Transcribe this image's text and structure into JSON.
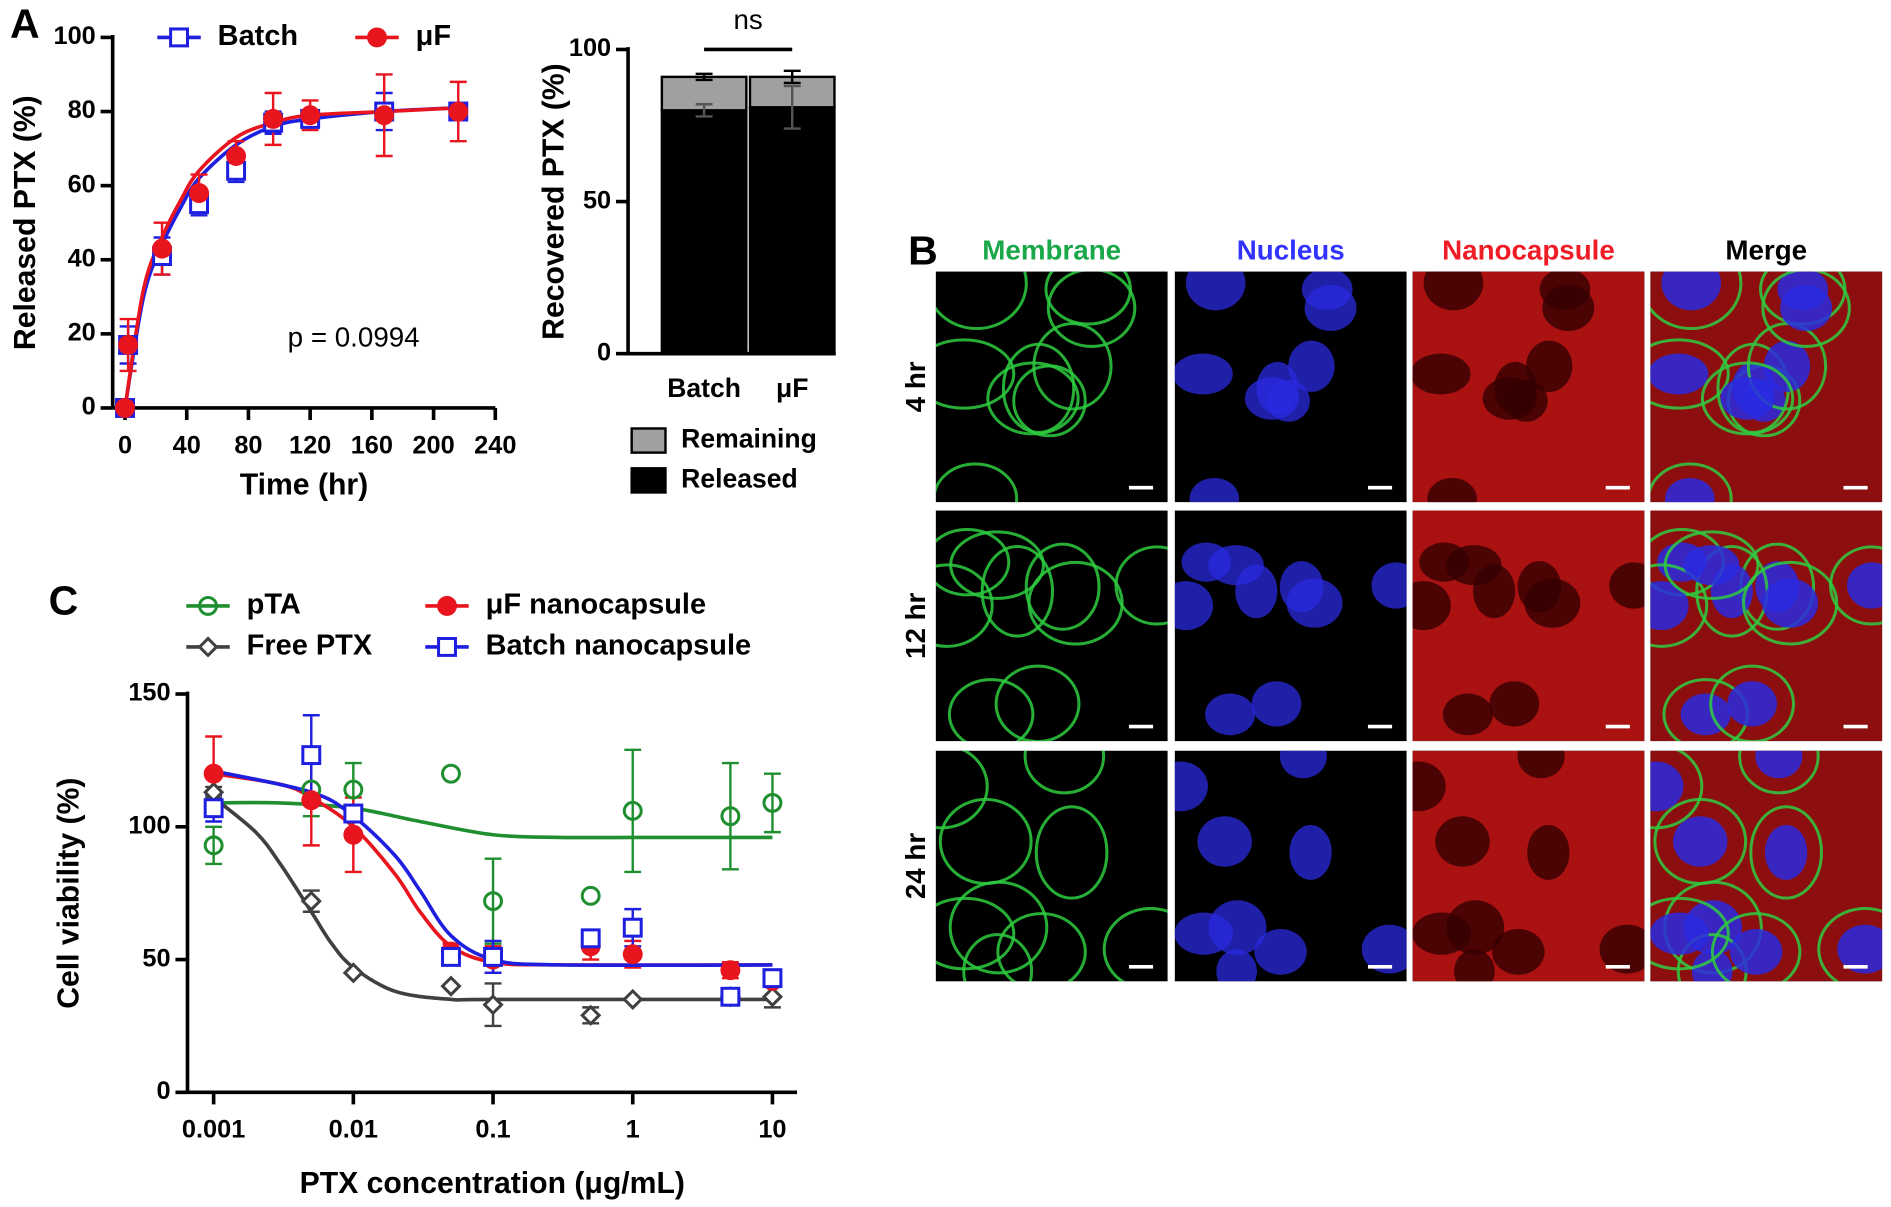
{
  "panel_labels": [
    "A",
    "B",
    "C"
  ],
  "chart_data": [
    {
      "type": "line",
      "xlabel": "Time (hr)",
      "ylabel": "Released PTX (%)",
      "annotation": "p = 0.0994",
      "x": [
        0,
        2,
        24,
        48,
        72,
        96,
        120,
        168,
        216
      ],
      "xlim": [
        -8,
        240
      ],
      "xticks": [
        0,
        40,
        80,
        120,
        160,
        200,
        240
      ],
      "ylim": [
        0,
        100
      ],
      "yticks": [
        0,
        20,
        40,
        60,
        80,
        100
      ],
      "series": [
        {
          "name": "Batch",
          "color": "#1f1fe0",
          "marker": "square-open",
          "values": [
            0,
            17,
            41,
            55,
            64,
            77,
            78,
            80,
            80
          ],
          "errors": [
            0,
            5,
            5,
            3,
            3,
            3,
            2,
            5,
            2
          ],
          "fit": {
            "x": [
              0,
              12,
              24,
              36,
              48,
              72,
              96,
              120,
              168,
              216
            ],
            "values": [
              0,
              30,
              44,
              54,
              62,
              71,
              76,
              78,
              80,
              81
            ]
          }
        },
        {
          "name": "μF",
          "color": "#e8141e",
          "marker": "circle-filled",
          "values": [
            0,
            17,
            43,
            58,
            68,
            78,
            79,
            79,
            80
          ],
          "errors": [
            0,
            7,
            7,
            5,
            4,
            7,
            4,
            11,
            8
          ],
          "fit": {
            "x": [
              0,
              12,
              24,
              36,
              48,
              72,
              96,
              120,
              168,
              216
            ],
            "values": [
              0,
              32,
              46,
              56,
              64,
              73,
              77,
              79,
              80,
              81
            ]
          }
        }
      ]
    },
    {
      "type": "bar",
      "stacked": true,
      "ylabel": "Recovered PTX (%)",
      "annotation": "ns",
      "categories": [
        "Batch",
        "μF"
      ],
      "ylim": [
        0,
        100
      ],
      "yticks": [
        0,
        50,
        100
      ],
      "series": [
        {
          "name": "Released",
          "color": "#000000",
          "values": [
            80,
            81
          ],
          "errors": [
            2,
            7
          ]
        },
        {
          "name": "Remaining",
          "color": "#a0a0a0",
          "values": [
            11,
            10
          ],
          "errors": [
            1,
            2
          ]
        }
      ]
    },
    {
      "type": "scatter",
      "log_x": true,
      "xlabel": "PTX concentration (μg/mL)",
      "ylabel": "Cell viability (%)",
      "x": [
        0.001,
        0.005,
        0.01,
        0.05,
        0.1,
        0.5,
        1,
        5,
        10
      ],
      "xlim": [
        0.00065,
        15
      ],
      "xticks": [
        0.001,
        0.01,
        0.1,
        1,
        10
      ],
      "ylim": [
        0,
        150
      ],
      "yticks": [
        0,
        50,
        100,
        150
      ],
      "series": [
        {
          "name": "pTA",
          "color": "#1f8f2f",
          "marker": "circle-open",
          "values": [
            93,
            114,
            114,
            120,
            72,
            74,
            106,
            104,
            109
          ],
          "errors": [
            7,
            10,
            10,
            0,
            16,
            0,
            23,
            20,
            11
          ],
          "fit": {
            "x": [
              0.001,
              0.003,
              0.01,
              0.03,
              0.1,
              0.3,
              1,
              10
            ],
            "values": [
              109,
              109,
              107,
              102,
              97,
              96,
              96,
              96
            ]
          }
        },
        {
          "name": "Free PTX",
          "color": "#404040",
          "marker": "diamond-open",
          "values": [
            113,
            72,
            45,
            40,
            33,
            29,
            35,
            36,
            36
          ],
          "errors": [
            2,
            4,
            0,
            0,
            8,
            3,
            0,
            2,
            4
          ],
          "fit": {
            "x": [
              0.001,
              0.002,
              0.003,
              0.005,
              0.007,
              0.01,
              0.02,
              0.05,
              0.1,
              10
            ],
            "values": [
              111,
              98,
              86,
              68,
              56,
              47,
              38,
              35,
              35,
              35
            ]
          }
        },
        {
          "name": "μF nanocapsule",
          "color": "#e8141e",
          "marker": "circle-filled",
          "values": [
            120,
            110,
            97,
            53,
            50,
            55,
            52,
            46,
            42
          ],
          "errors": [
            14,
            17,
            14,
            3,
            5,
            5,
            5,
            3,
            2
          ],
          "fit": {
            "x": [
              0.001,
              0.003,
              0.005,
              0.01,
              0.02,
              0.03,
              0.05,
              0.1,
              0.3,
              10
            ],
            "values": [
              120,
              116,
              111,
              100,
              82,
              68,
              55,
              49,
              48,
              48
            ]
          }
        },
        {
          "name": "Batch nanocapsule",
          "color": "#1f1fe0",
          "marker": "square-open",
          "values": [
            107,
            127,
            105,
            51,
            51,
            58,
            62,
            36,
            43
          ],
          "errors": [
            5,
            15,
            3,
            3,
            6,
            3,
            7,
            2,
            2
          ],
          "fit": {
            "x": [
              0.001,
              0.005,
              0.01,
              0.02,
              0.03,
              0.05,
              0.1,
              0.3,
              10
            ],
            "values": [
              121,
              113,
              104,
              89,
              76,
              59,
              50,
              48,
              48
            ]
          }
        }
      ]
    }
  ],
  "microscopy": {
    "channels": [
      "Membrane",
      "Nucleus",
      "Nanocapsule",
      "Merge"
    ],
    "times": [
      "4 hr",
      "12 hr",
      "24 hr"
    ]
  }
}
